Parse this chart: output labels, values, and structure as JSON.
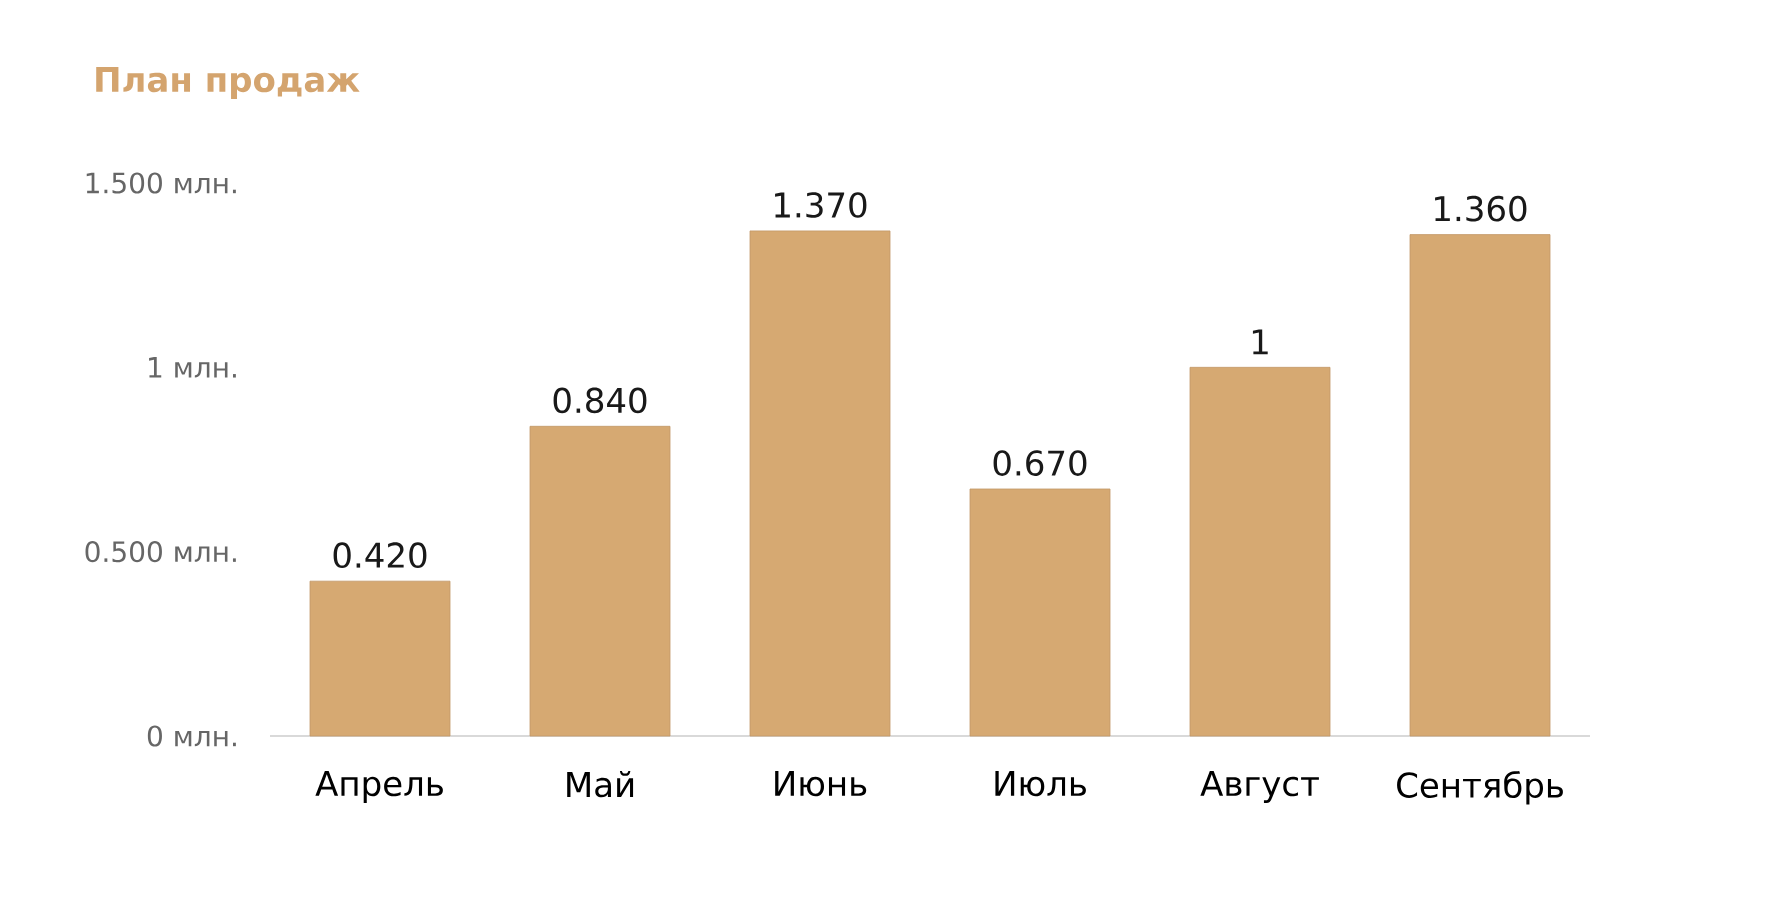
{
  "chart_data": {
    "type": "bar",
    "title": "План продаж",
    "categories": [
      "Апрель",
      "Май",
      "Июнь",
      "Июль",
      "Август",
      "Сентябрь"
    ],
    "values": [
      0.42,
      0.84,
      1.37,
      0.67,
      1,
      1.36
    ],
    "value_labels": [
      "0.420",
      "0.840",
      "1.370",
      "0.670",
      "1",
      "1.360"
    ],
    "color": "#d6a972",
    "ylim": [
      0,
      1.5
    ],
    "yticks": [
      {
        "value": 0,
        "label": "0 млн."
      },
      {
        "value": 0.5,
        "label": "0.500 млн."
      },
      {
        "value": 1,
        "label": "1 млн."
      },
      {
        "value": 1.5,
        "label": "1.500 млн."
      }
    ]
  }
}
